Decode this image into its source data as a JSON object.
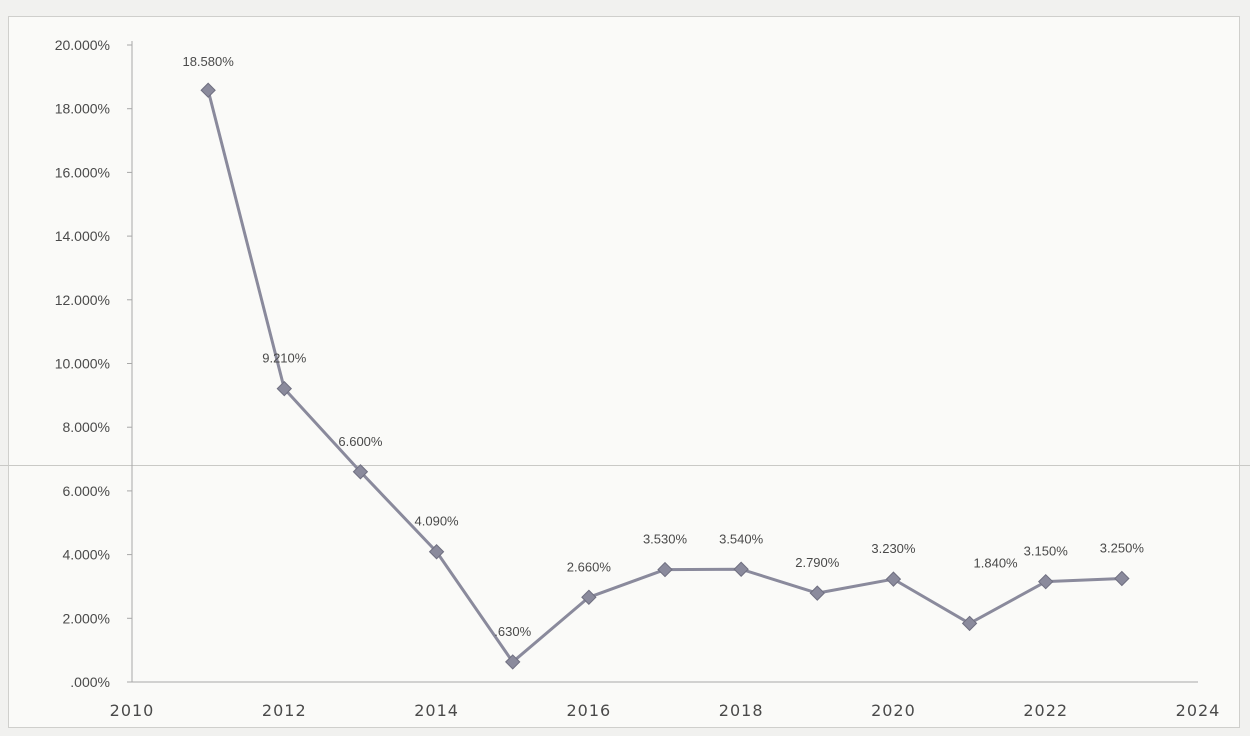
{
  "chart_data": {
    "type": "line",
    "title": "",
    "xlabel": "",
    "ylabel": "",
    "xlim": [
      2010,
      2024
    ],
    "ylim": [
      0,
      20
    ],
    "x_ticks": [
      "2010",
      "2012",
      "2014",
      "2016",
      "2018",
      "2020",
      "2022",
      "2024"
    ],
    "y_ticks": [
      ".000%",
      "2.000%",
      "4.000%",
      "6.000%",
      "8.000%",
      "10.000%",
      "12.000%",
      "14.000%",
      "16.000%",
      "18.000%",
      "20.000%"
    ],
    "grid": false,
    "legend": "none",
    "series_color": "#8a8a9c",
    "series": [
      {
        "x": [
          2011,
          2012,
          2013,
          2014,
          2015,
          2016,
          2017,
          2018,
          2019,
          2020,
          2021,
          2022,
          2023
        ],
        "values": [
          18.58,
          9.21,
          6.6,
          4.09,
          0.63,
          2.66,
          3.53,
          3.54,
          2.79,
          3.23,
          1.84,
          3.15,
          3.25
        ],
        "labels": [
          "18.580%",
          "9.210%",
          "6.600%",
          "4.090%",
          ".630%",
          "2.660%",
          "3.530%",
          "3.540%",
          "2.790%",
          "3.230%",
          "1.840%",
          "3.150%",
          "3.250%"
        ]
      }
    ]
  }
}
